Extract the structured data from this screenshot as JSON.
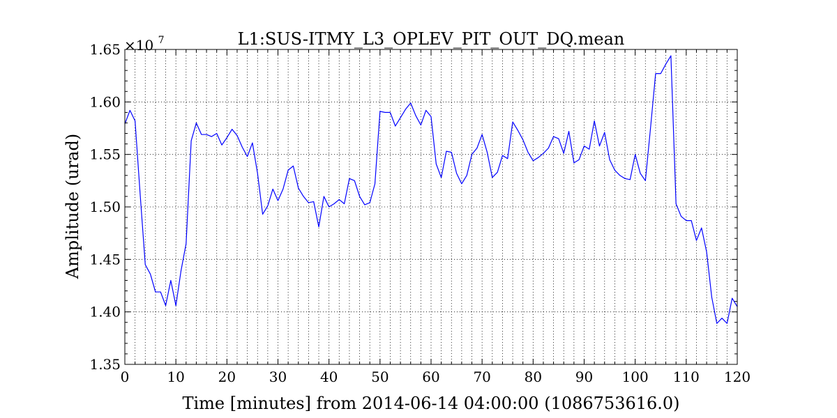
{
  "chart_data": {
    "type": "line",
    "title": "L1:SUS-ITMY_L3_OPLEV_PIT_OUT_DQ.mean",
    "xlabel": "Time [minutes] from 2014-06-14 04:00:00 (1086753616.0)",
    "ylabel": "Amplitude (urad)",
    "y_offset_base": "×10",
    "y_offset_exponent": "7",
    "xlim": [
      0,
      120
    ],
    "ylim": [
      1.35,
      1.65
    ],
    "grid": true,
    "line_color": "#0000ff",
    "xticks": [
      0,
      10,
      20,
      30,
      40,
      50,
      60,
      70,
      80,
      90,
      100,
      110,
      120
    ],
    "xtick_labels": [
      "0",
      "10",
      "20",
      "30",
      "40",
      "50",
      "60",
      "70",
      "80",
      "90",
      "100",
      "110",
      "120"
    ],
    "yticks": [
      1.35,
      1.4,
      1.45,
      1.5,
      1.55,
      1.6,
      1.65
    ],
    "ytick_labels": [
      "1.35",
      "1.40",
      "1.45",
      "1.50",
      "1.55",
      "1.60",
      "1.65"
    ],
    "series": [
      {
        "x": [
          0,
          1,
          2,
          3,
          4,
          5,
          6,
          7,
          8,
          9,
          10,
          11,
          12,
          13,
          14,
          15,
          16,
          17,
          18,
          19,
          20,
          21,
          22,
          23,
          24,
          25,
          26,
          27,
          28,
          29,
          30,
          31,
          32,
          33,
          34,
          35,
          36,
          37,
          38,
          39,
          40,
          41,
          42,
          43,
          44,
          45,
          46,
          47,
          48,
          49,
          50,
          51,
          52,
          53,
          54,
          55,
          56,
          57,
          58,
          59,
          60,
          61,
          62,
          63,
          64,
          65,
          66,
          67,
          68,
          69,
          70,
          71,
          72,
          73,
          74,
          75,
          76,
          77,
          78,
          79,
          80,
          81,
          82,
          83,
          84,
          85,
          86,
          87,
          88,
          89,
          90,
          91,
          92,
          93,
          94,
          95,
          96,
          97,
          98,
          99,
          100,
          101,
          102,
          103,
          104,
          105,
          106,
          107,
          108,
          109,
          110,
          111,
          112,
          113,
          114,
          115,
          116,
          117,
          118,
          119,
          120
        ],
        "y": [
          1.579,
          1.592,
          1.582,
          1.512,
          1.445,
          1.436,
          1.419,
          1.419,
          1.406,
          1.43,
          1.406,
          1.439,
          1.465,
          1.563,
          1.58,
          1.569,
          1.569,
          1.567,
          1.57,
          1.559,
          1.566,
          1.574,
          1.568,
          1.557,
          1.548,
          1.561,
          1.532,
          1.493,
          1.501,
          1.517,
          1.506,
          1.517,
          1.535,
          1.539,
          1.518,
          1.51,
          1.504,
          1.505,
          1.481,
          1.51,
          1.5,
          1.503,
          1.507,
          1.503,
          1.527,
          1.525,
          1.51,
          1.502,
          1.504,
          1.522,
          1.591,
          1.59,
          1.59,
          1.577,
          1.585,
          1.593,
          1.599,
          1.587,
          1.578,
          1.592,
          1.586,
          1.541,
          1.528,
          1.553,
          1.552,
          1.532,
          1.522,
          1.53,
          1.55,
          1.556,
          1.569,
          1.552,
          1.528,
          1.533,
          1.549,
          1.546,
          1.581,
          1.573,
          1.564,
          1.552,
          1.544,
          1.547,
          1.551,
          1.556,
          1.567,
          1.565,
          1.551,
          1.572,
          1.542,
          1.545,
          1.558,
          1.555,
          1.582,
          1.558,
          1.571,
          1.545,
          1.535,
          1.53,
          1.527,
          1.526,
          1.55,
          1.532,
          1.525,
          1.575,
          1.627,
          1.627,
          1.636,
          1.644,
          1.503,
          1.491,
          1.487,
          1.487,
          1.468,
          1.48,
          1.457,
          1.414,
          1.389,
          1.394,
          1.389,
          1.413,
          1.405
        ]
      }
    ]
  }
}
